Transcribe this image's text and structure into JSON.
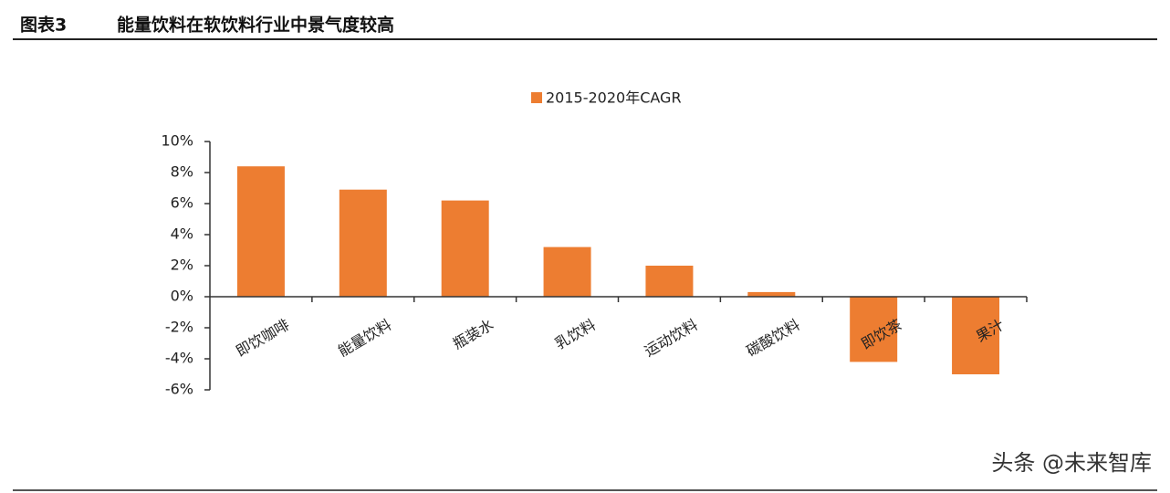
{
  "header": {
    "label": "图表3",
    "title": "能量饮料在软饮料行业中景气度较高"
  },
  "chart_data": {
    "type": "bar",
    "categories": [
      "即饮咖啡",
      "能量饮料",
      "瓶装水",
      "乳饮料",
      "运动饮料",
      "碳酸饮料",
      "即饮茶",
      "果汁"
    ],
    "series": [
      {
        "name": "2015-2020年CAGR",
        "color": "#ed7d31",
        "values": [
          8.4,
          6.9,
          6.2,
          3.2,
          2.0,
          0.3,
          -4.2,
          -5.0
        ]
      }
    ],
    "ylim": [
      -6,
      10
    ],
    "yticks": [
      {
        "value": -6,
        "label": "-6%"
      },
      {
        "value": -4,
        "label": "-4%"
      },
      {
        "value": -2,
        "label": "-2%"
      },
      {
        "value": 0,
        "label": "0%"
      },
      {
        "value": 2,
        "label": "2%"
      },
      {
        "value": 4,
        "label": "4%"
      },
      {
        "value": 6,
        "label": "6%"
      },
      {
        "value": 8,
        "label": "8%"
      },
      {
        "value": 10,
        "label": "10%"
      }
    ],
    "legend": "top"
  },
  "watermark": "头条 @未来智库"
}
